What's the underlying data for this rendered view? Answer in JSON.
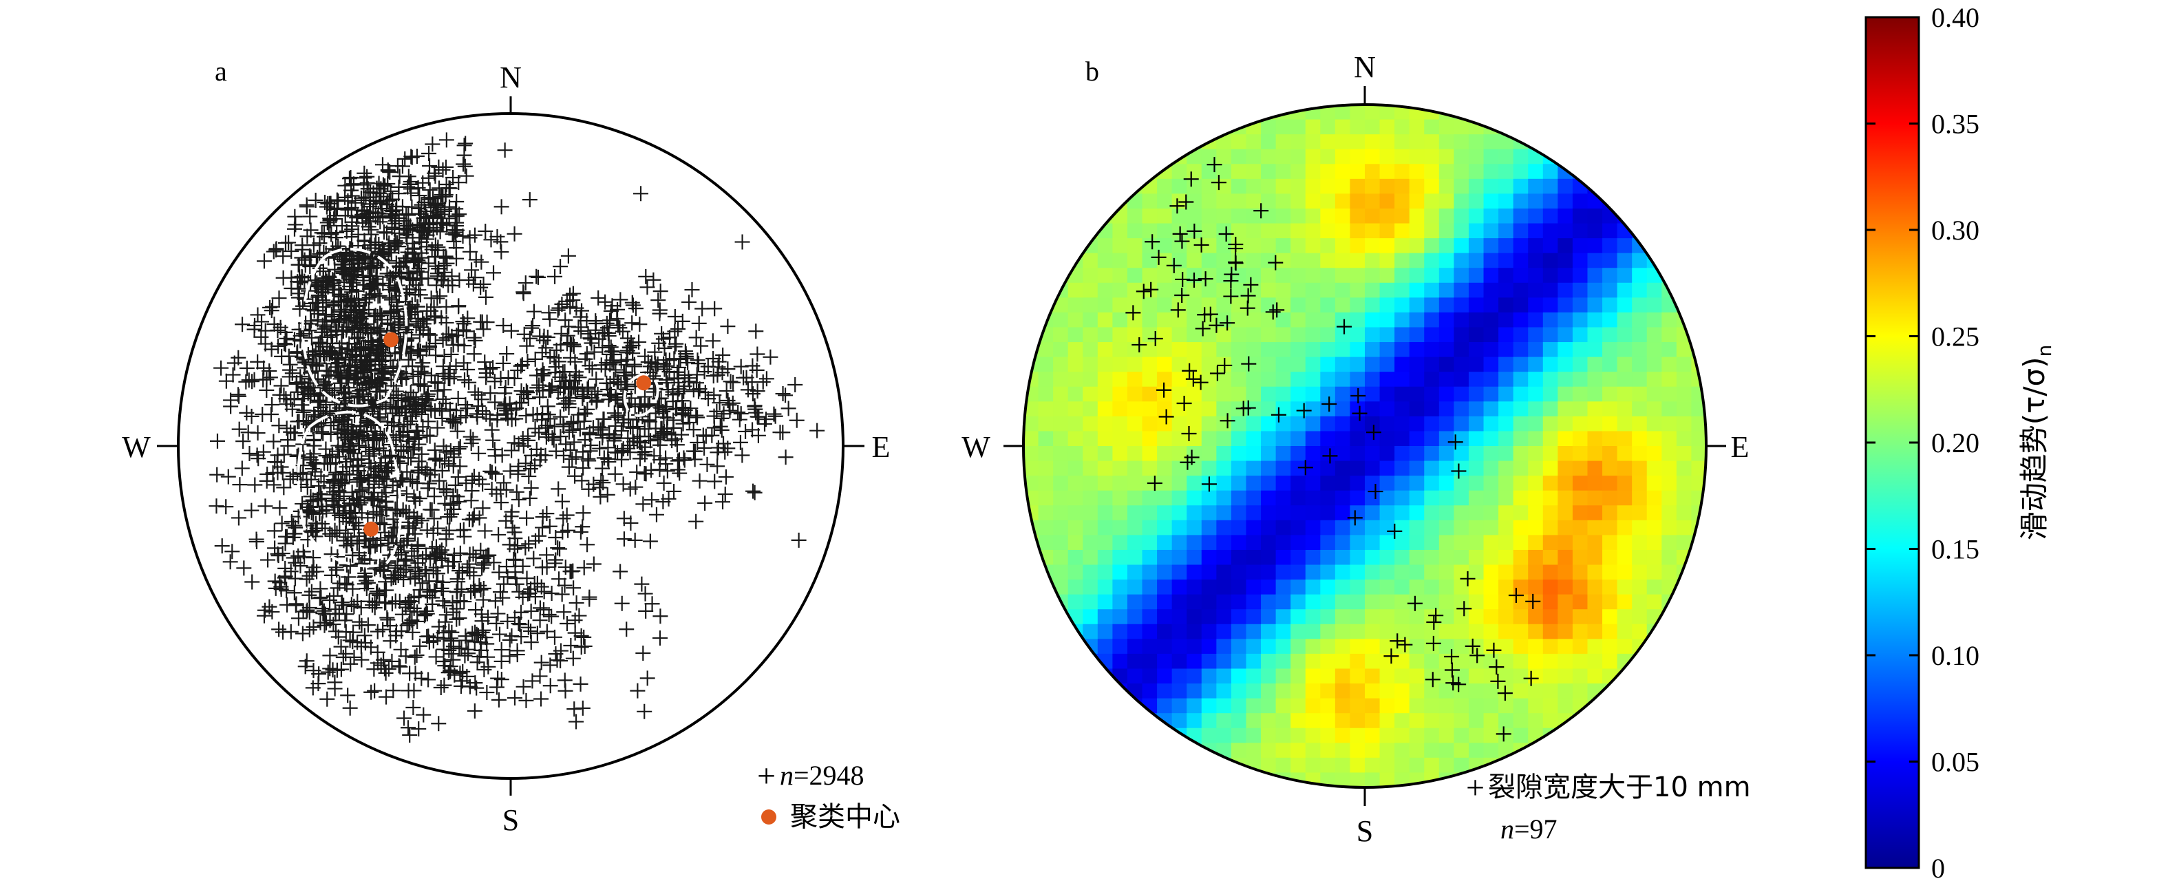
{
  "chart_data": [
    {
      "type": "scatter",
      "panel_label": "a",
      "compass": {
        "north": "N",
        "south": "S",
        "west": "W",
        "east": "E"
      },
      "legend": {
        "points_symbol": "+",
        "points_prefix": "n",
        "points_suffix": "=2948",
        "cluster_label": "聚类中心"
      },
      "n_points": 2948,
      "cluster_centers": [
        {
          "x": -0.36,
          "y": 0.32
        },
        {
          "x": 0.4,
          "y": 0.19
        },
        {
          "x": -0.42,
          "y": -0.25
        }
      ],
      "point_groups": [
        {
          "cx": -0.46,
          "cy": 0.22,
          "sx": 0.16,
          "sy": 0.34,
          "n": 1500
        },
        {
          "cx": 0.3,
          "cy": 0.15,
          "sx": 0.25,
          "sy": 0.17,
          "n": 700
        },
        {
          "cx": -0.22,
          "cy": -0.46,
          "sx": 0.26,
          "sy": 0.2,
          "n": 560
        },
        {
          "cx": -0.3,
          "cy": 0.68,
          "sx": 0.12,
          "sy": 0.1,
          "n": 188
        }
      ],
      "colors": {
        "points": "#1a1a1a",
        "cluster": "#e05a1c",
        "outline": "#000000",
        "boundary": "#ffffff"
      }
    },
    {
      "type": "heatmap",
      "panel_label": "b",
      "compass": {
        "north": "N",
        "south": "S",
        "west": "W",
        "east": "E"
      },
      "legend": {
        "points_symbol": "+",
        "points_label": "裂隙宽度大于10 mm",
        "count_prefix": "n",
        "count_suffix": "=97"
      },
      "n_points": 97,
      "point_groups": [
        {
          "cx": -0.48,
          "cy": 0.44,
          "sx": 0.12,
          "sy": 0.24,
          "n": 62
        },
        {
          "cx": -0.06,
          "cy": -0.02,
          "sx": 0.14,
          "sy": 0.12,
          "n": 10
        },
        {
          "cx": 0.26,
          "cy": -0.6,
          "sx": 0.14,
          "sy": 0.12,
          "n": 25
        }
      ],
      "colorbar": {
        "label": "滑动趋势(τ/σ)",
        "label_subscript": "n",
        "range": [
          0,
          0.4
        ],
        "ticks": [
          "0",
          "0.05",
          "0.10",
          "0.15",
          "0.20",
          "0.25",
          "0.30",
          "0.35",
          "0.40"
        ],
        "colormap": [
          "#00008f",
          "#0000ff",
          "#0080ff",
          "#00ffff",
          "#80ff80",
          "#ffff00",
          "#ff8000",
          "#ff0000",
          "#800000"
        ]
      },
      "field": {
        "strike_deg": 45,
        "band_min": 0.03,
        "background": 0.21,
        "high_zones": [
          {
            "x": 0.05,
            "y": 0.7,
            "value": 0.28
          },
          {
            "x": 0.55,
            "y": -0.45,
            "value": 0.3
          },
          {
            "x": -0.05,
            "y": -0.72,
            "value": 0.27
          },
          {
            "x": 0.68,
            "y": -0.1,
            "value": 0.29
          },
          {
            "x": -0.62,
            "y": 0.12,
            "value": 0.26
          }
        ]
      }
    }
  ]
}
